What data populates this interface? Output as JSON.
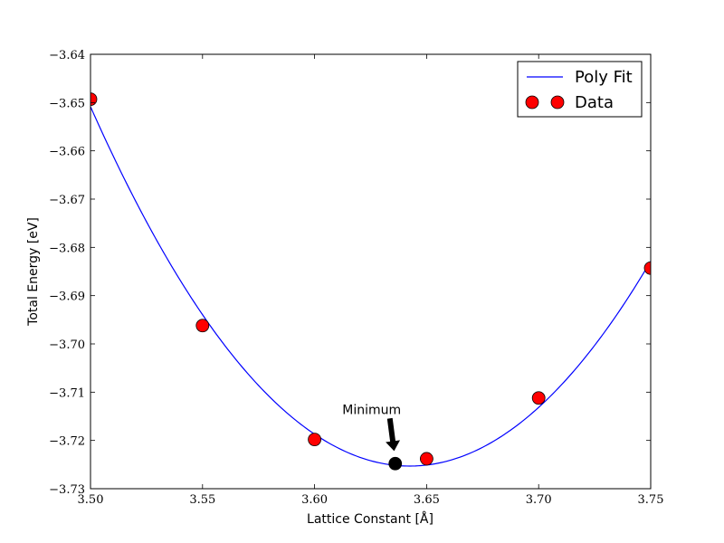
{
  "chart_data": {
    "type": "line",
    "title": "",
    "xlabel": "Lattice Constant [Å]",
    "ylabel": "Total Energy [eV]",
    "xlim": [
      3.5,
      3.75
    ],
    "ylim": [
      -3.73,
      -3.64
    ],
    "x_ticks": [
      "3.50",
      "3.55",
      "3.60",
      "3.65",
      "3.70",
      "3.75"
    ],
    "y_ticks": [
      "−3.64",
      "−3.65",
      "−3.66",
      "−3.67",
      "−3.68",
      "−3.69",
      "−3.70",
      "−3.71",
      "−3.72",
      "−3.73"
    ],
    "grid": false,
    "legend_position": "top-right",
    "series": [
      {
        "name": "Poly Fit",
        "kind": "line",
        "color": "#0000ff",
        "fit_points": [
          [
            3.5,
            -3.6493
          ],
          [
            3.55,
            -3.6962
          ],
          [
            3.6,
            -3.7198
          ],
          [
            3.65,
            -3.7238
          ],
          [
            3.7,
            -3.7112
          ],
          [
            3.75,
            -3.6843
          ]
        ]
      },
      {
        "name": "Data",
        "kind": "markers",
        "color": "#ff0000",
        "x": [
          3.5,
          3.55,
          3.6,
          3.65,
          3.7,
          3.75
        ],
        "y": [
          -3.6493,
          -3.6962,
          -3.7198,
          -3.7238,
          -3.7112,
          -3.6843
        ]
      }
    ],
    "minimum_point": {
      "x": 3.636,
      "y": -3.7248,
      "color": "#000000"
    },
    "annotation": {
      "text": "Minimum",
      "text_x": 3.6255,
      "text_y": -3.7145,
      "arrow_to_x": 3.6355,
      "arrow_to_y": -3.7222
    }
  }
}
